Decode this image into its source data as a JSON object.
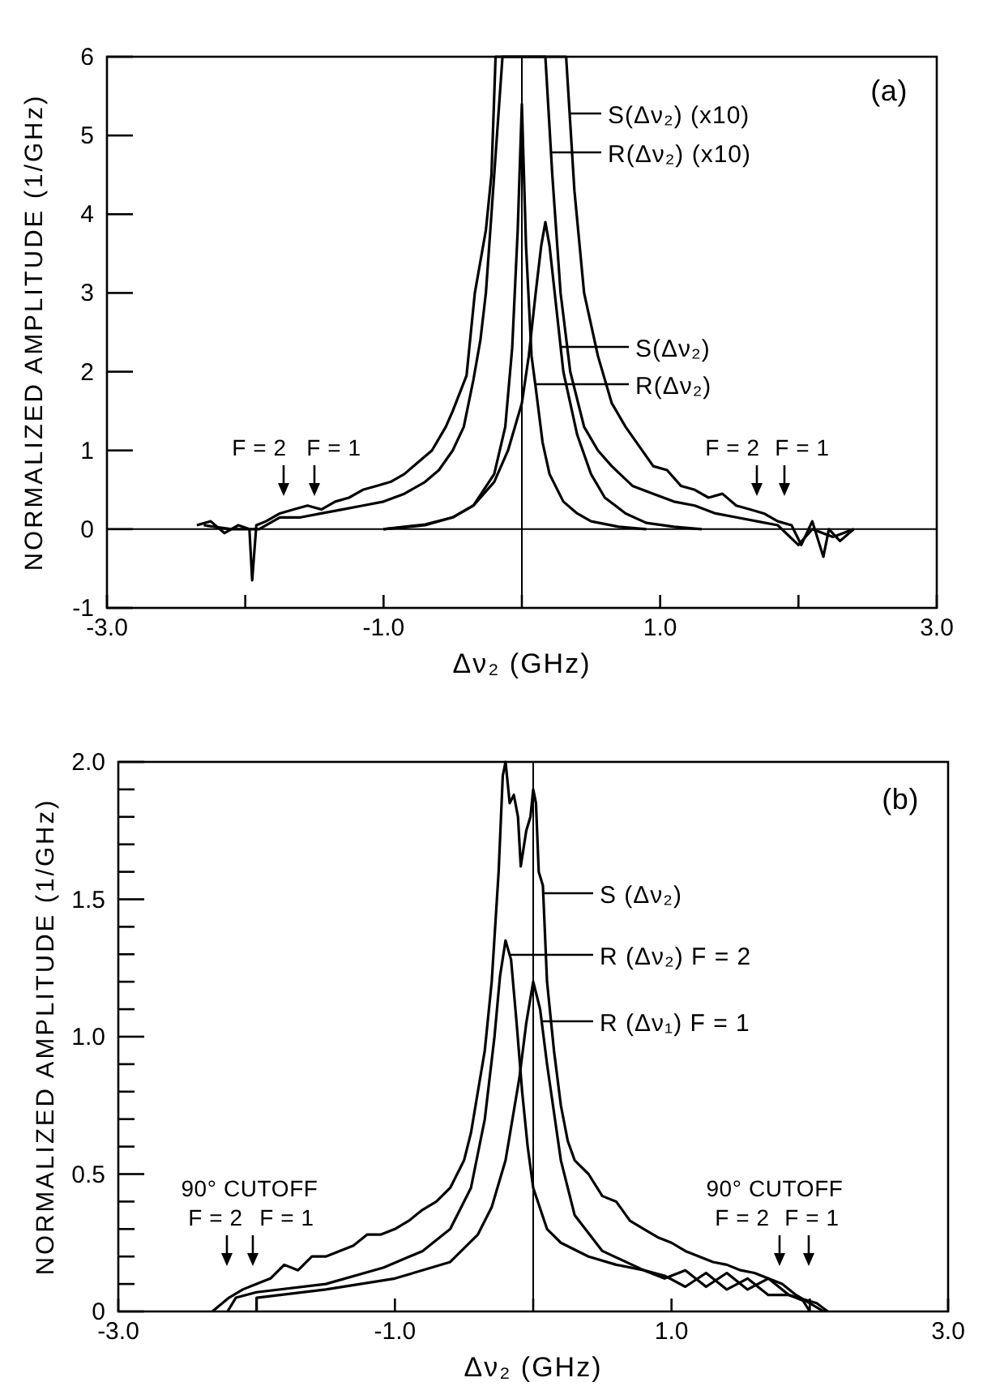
{
  "chart_data": [
    {
      "type": "line",
      "xlabel": "Δν₂ (GHz)",
      "ylabel": "NORMALIZED AMPLITUDE (1/GHz)",
      "xlim": [
        -3,
        3
      ],
      "ylim": [
        -1,
        6
      ],
      "xticks": [
        {
          "value": -3,
          "label": "-3.0"
        },
        {
          "value": -2,
          "label": null
        },
        {
          "value": -1,
          "label": "-1.0"
        },
        {
          "value": 0,
          "label": null
        },
        {
          "value": 1,
          "label": "1.0"
        },
        {
          "value": 2,
          "label": null
        },
        {
          "value": 3,
          "label": "3.0"
        }
      ],
      "yticks": [
        -1,
        0,
        1,
        2,
        3,
        4,
        5,
        6
      ],
      "ref_lines": [
        {
          "axis": "y",
          "value": 0
        },
        {
          "axis": "x",
          "value": 0
        }
      ],
      "legend": "top right",
      "annotations": [
        "(a)",
        "F = 2",
        "F = 1",
        "F = 2",
        "F = 1"
      ],
      "series": [
        {
          "name": "S(Δν₂) (x10)",
          "color": "#000000",
          "x": [
            -2.35,
            -2.25,
            -2.15,
            -2.05,
            -1.97,
            -1.95,
            -1.92,
            -1.85,
            -1.75,
            -1.65,
            -1.55,
            -1.45,
            -1.35,
            -1.25,
            -1.15,
            -1.05,
            -0.95,
            -0.85,
            -0.75,
            -0.65,
            -0.55,
            -0.5,
            -0.4,
            -0.34,
            -0.26,
            -0.22,
            -0.19,
            0.32,
            0.38,
            0.45,
            0.55,
            0.65,
            0.75,
            0.85,
            0.95,
            1.05,
            1.15,
            1.25,
            1.35,
            1.45,
            1.55,
            1.65,
            1.75,
            1.85,
            1.95,
            2.02,
            2.1,
            2.18,
            2.22,
            2.3,
            2.4
          ],
          "values": [
            0.05,
            0.1,
            -0.05,
            0.05,
            0.0,
            -0.65,
            0.05,
            0.1,
            0.2,
            0.25,
            0.3,
            0.25,
            0.35,
            0.4,
            0.5,
            0.55,
            0.6,
            0.7,
            0.85,
            1.0,
            1.3,
            1.5,
            1.95,
            3.0,
            3.8,
            4.5,
            6.0,
            6.0,
            4.3,
            3.0,
            2.2,
            1.6,
            1.3,
            1.05,
            0.8,
            0.75,
            0.55,
            0.5,
            0.4,
            0.45,
            0.3,
            0.25,
            0.2,
            0.1,
            0.05,
            -0.2,
            0.1,
            -0.35,
            0.0,
            -0.15,
            0.0
          ]
        },
        {
          "name": "R(Δν₂) (x10)",
          "color": "#000000",
          "x": [
            -2.3,
            -2.1,
            -1.9,
            -1.75,
            -1.6,
            -1.45,
            -1.3,
            -1.15,
            -1.0,
            -0.85,
            -0.7,
            -0.6,
            -0.5,
            -0.42,
            -0.35,
            -0.3,
            -0.26,
            -0.2,
            -0.14,
            0.17,
            0.22,
            0.28,
            0.35,
            0.45,
            0.55,
            0.65,
            0.8,
            0.95,
            1.1,
            1.25,
            1.4,
            1.55,
            1.7,
            1.85,
            2.0,
            2.1,
            2.25,
            2.4
          ],
          "values": [
            0.05,
            0.0,
            0.0,
            0.15,
            0.15,
            0.2,
            0.25,
            0.3,
            0.35,
            0.45,
            0.6,
            0.75,
            1.0,
            1.3,
            1.9,
            2.4,
            3.0,
            4.5,
            6.0,
            6.0,
            4.5,
            3.0,
            2.0,
            1.3,
            1.0,
            0.8,
            0.55,
            0.45,
            0.35,
            0.3,
            0.2,
            0.15,
            0.1,
            0.05,
            -0.2,
            0.0,
            -0.1,
            0.0
          ]
        },
        {
          "name": "S(Δν₂)",
          "color": "#000000",
          "x": [
            -1.0,
            -0.7,
            -0.5,
            -0.35,
            -0.2,
            -0.1,
            0.0,
            0.05,
            0.1,
            0.14,
            0.17,
            0.2,
            0.25,
            0.3,
            0.4,
            0.5,
            0.6,
            0.75,
            0.9,
            1.1,
            1.3
          ],
          "values": [
            0.0,
            0.05,
            0.15,
            0.3,
            0.6,
            1.0,
            1.6,
            2.2,
            3.0,
            3.6,
            3.9,
            3.6,
            2.8,
            2.0,
            1.2,
            0.7,
            0.4,
            0.2,
            0.08,
            0.03,
            0.0
          ]
        },
        {
          "name": "R(Δν₂)",
          "color": "#000000",
          "x": [
            -1.0,
            -0.7,
            -0.5,
            -0.35,
            -0.2,
            -0.12,
            -0.07,
            -0.03,
            0.0,
            0.03,
            0.07,
            0.1,
            0.15,
            0.2,
            0.3,
            0.4,
            0.5,
            0.7,
            0.9
          ],
          "values": [
            0.0,
            0.06,
            0.15,
            0.3,
            0.7,
            1.3,
            2.3,
            3.8,
            5.4,
            3.6,
            2.2,
            1.8,
            1.1,
            0.7,
            0.35,
            0.2,
            0.1,
            0.03,
            0.0
          ]
        }
      ]
    },
    {
      "type": "line",
      "xlabel": "Δν₂ (GHz)",
      "ylabel": "NORMALIZED AMPLITUDE (1/GHz)",
      "xlim": [
        -3,
        3
      ],
      "ylim": [
        0,
        2
      ],
      "xticks": [
        {
          "value": -3,
          "label": "-3.0"
        },
        {
          "value": -2,
          "label": null
        },
        {
          "value": -1,
          "label": "-1.0"
        },
        {
          "value": 0,
          "label": null
        },
        {
          "value": 1,
          "label": "1.0"
        },
        {
          "value": 2,
          "label": null
        },
        {
          "value": 3,
          "label": "3.0"
        }
      ],
      "yticks": [
        {
          "value": 0,
          "label": "0"
        },
        {
          "value": 0.1,
          "label": null
        },
        {
          "value": 0.2,
          "label": null
        },
        {
          "value": 0.3,
          "label": null
        },
        {
          "value": 0.4,
          "label": null
        },
        {
          "value": 0.5,
          "label": "0.5"
        },
        {
          "value": 0.6,
          "label": null
        },
        {
          "value": 0.7,
          "label": null
        },
        {
          "value": 0.8,
          "label": null
        },
        {
          "value": 0.9,
          "label": null
        },
        {
          "value": 1.0,
          "label": "1.0"
        },
        {
          "value": 1.1,
          "label": null
        },
        {
          "value": 1.2,
          "label": null
        },
        {
          "value": 1.3,
          "label": null
        },
        {
          "value": 1.4,
          "label": null
        },
        {
          "value": 1.5,
          "label": "1.5"
        },
        {
          "value": 1.6,
          "label": null
        },
        {
          "value": 1.7,
          "label": null
        },
        {
          "value": 1.8,
          "label": null
        },
        {
          "value": 1.9,
          "label": null
        },
        {
          "value": 2.0,
          "label": "2.0"
        }
      ],
      "ref_lines": [
        {
          "axis": "x",
          "value": 0
        }
      ],
      "legend": "top right",
      "annotations": [
        "(b)",
        "90° CUTOFF",
        "90° CUTOFF",
        "F = 2",
        "F = 1",
        "F = 2",
        "F = 1"
      ],
      "series": [
        {
          "name": "S (Δν₂)",
          "color": "#000000",
          "x": [
            -2.32,
            -2.2,
            -2.1,
            -2.0,
            -1.9,
            -1.8,
            -1.7,
            -1.6,
            -1.5,
            -1.4,
            -1.3,
            -1.2,
            -1.1,
            -1.0,
            -0.9,
            -0.8,
            -0.7,
            -0.6,
            -0.5,
            -0.45,
            -0.4,
            -0.35,
            -0.3,
            -0.25,
            -0.22,
            -0.2,
            -0.17,
            -0.14,
            -0.11,
            -0.09,
            -0.05,
            -0.02,
            0.0,
            0.02,
            0.04,
            0.07,
            0.1,
            0.15,
            0.2,
            0.25,
            0.3,
            0.4,
            0.5,
            0.6,
            0.7,
            0.8,
            0.9,
            1.0,
            1.1,
            1.2,
            1.3,
            1.4,
            1.5,
            1.6,
            1.7,
            1.8,
            1.9,
            2.0,
            2.1
          ],
          "values": [
            0.0,
            0.05,
            0.08,
            0.1,
            0.12,
            0.17,
            0.15,
            0.2,
            0.2,
            0.22,
            0.24,
            0.28,
            0.28,
            0.3,
            0.33,
            0.37,
            0.4,
            0.45,
            0.55,
            0.65,
            0.8,
            0.95,
            1.2,
            1.6,
            1.95,
            2.0,
            1.85,
            1.88,
            1.8,
            1.62,
            1.75,
            1.8,
            1.9,
            1.85,
            1.6,
            1.55,
            1.2,
            0.95,
            0.75,
            0.62,
            0.55,
            0.5,
            0.42,
            0.4,
            0.33,
            0.3,
            0.27,
            0.25,
            0.22,
            0.2,
            0.18,
            0.17,
            0.15,
            0.14,
            0.12,
            0.1,
            0.06,
            0.03,
            0.0
          ]
        },
        {
          "name": "R (Δν₂) F = 2",
          "color": "#000000",
          "x": [
            -2.21,
            -2.15,
            -2.0,
            -1.5,
            -1.08,
            -0.8,
            -0.6,
            -0.45,
            -0.35,
            -0.28,
            -0.24,
            -0.2,
            -0.16,
            -0.12,
            -0.08,
            -0.04,
            0.0,
            0.1,
            0.2,
            0.4,
            0.6,
            0.8,
            0.95,
            1.1,
            1.25,
            1.4,
            1.55,
            1.7,
            1.85,
            1.95,
            2.0
          ],
          "values": [
            0.0,
            0.05,
            0.07,
            0.1,
            0.16,
            0.22,
            0.3,
            0.45,
            0.7,
            1.0,
            1.22,
            1.35,
            1.28,
            1.05,
            0.8,
            0.6,
            0.45,
            0.3,
            0.25,
            0.2,
            0.17,
            0.15,
            0.12,
            0.15,
            0.09,
            0.14,
            0.08,
            0.12,
            0.06,
            0.04,
            0.0
          ]
        },
        {
          "name": "R (Δν₁) F = 1",
          "color": "#000000",
          "x": [
            -2.0,
            -2.0,
            -1.5,
            -1.0,
            -0.6,
            -0.4,
            -0.3,
            -0.2,
            -0.1,
            -0.05,
            0.0,
            0.05,
            0.1,
            0.2,
            0.3,
            0.5,
            0.8,
            0.95,
            1.1,
            1.25,
            1.4,
            1.55,
            1.7,
            1.85,
            2.05,
            2.13
          ],
          "values": [
            0.0,
            0.05,
            0.08,
            0.12,
            0.18,
            0.28,
            0.38,
            0.55,
            0.85,
            1.05,
            1.2,
            1.1,
            0.9,
            0.55,
            0.35,
            0.22,
            0.15,
            0.13,
            0.09,
            0.14,
            0.08,
            0.12,
            0.06,
            0.06,
            0.03,
            0.0
          ]
        }
      ]
    }
  ]
}
